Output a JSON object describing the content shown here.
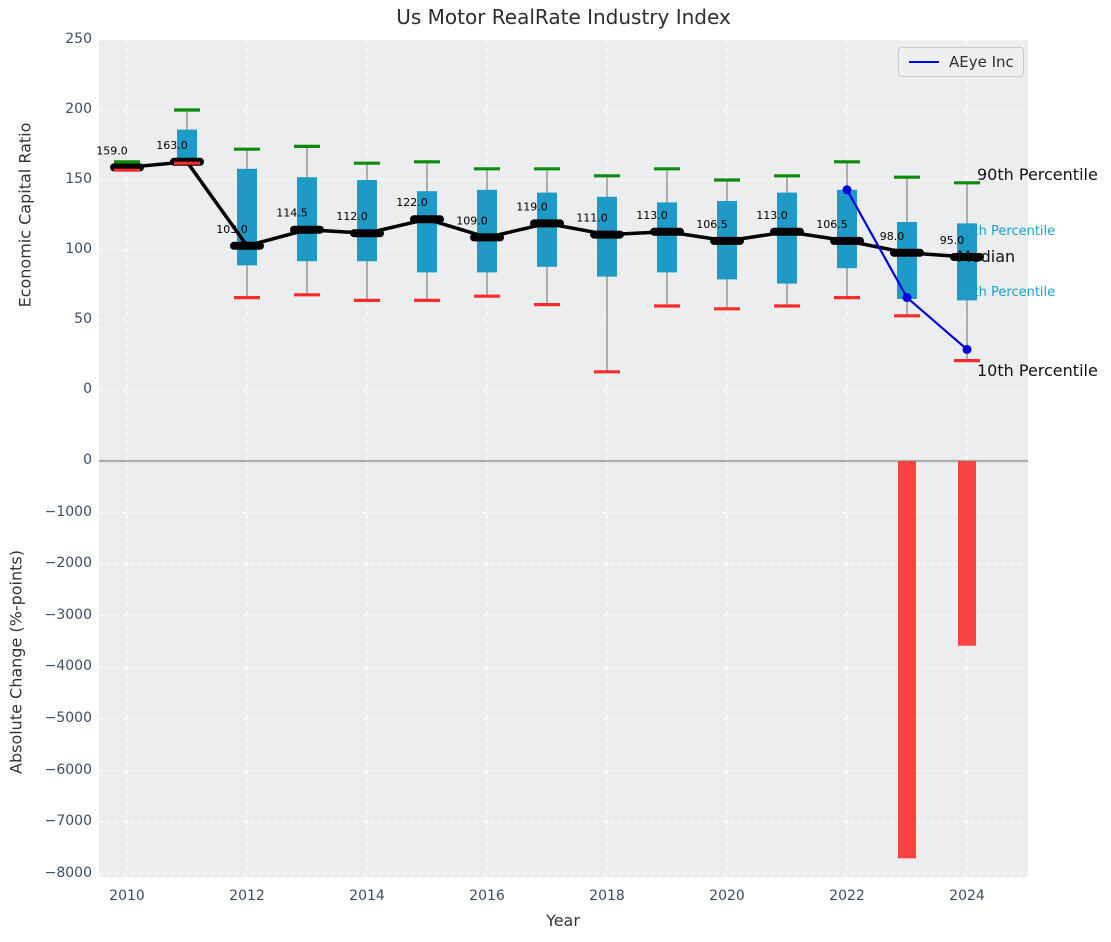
{
  "title": "Us Motor RealRate Industry Index",
  "legend": {
    "series_label": "AEye Inc"
  },
  "top_chart": {
    "ylabel": "Economic Capital Ratio",
    "ytick_values": [
      250,
      200,
      150,
      100,
      50,
      0
    ],
    "ytick_labels": [
      "250",
      "200",
      "150",
      "100",
      "50",
      "0"
    ]
  },
  "bottom_chart": {
    "ylabel": "Absolute Change (%-points)",
    "xlabel": "Year",
    "ytick_values": [
      0,
      -1000,
      -2000,
      -3000,
      -4000,
      -5000,
      -6000,
      -7000,
      -8000
    ],
    "ytick_labels": [
      "0",
      "−1000",
      "−2000",
      "−3000",
      "−4000",
      "−5000",
      "−6000",
      "−7000",
      "−8000"
    ],
    "xtick_values": [
      2010,
      2012,
      2014,
      2016,
      2018,
      2020,
      2022,
      2024
    ],
    "xtick_labels": [
      "2010",
      "2012",
      "2014",
      "2016",
      "2018",
      "2020",
      "2022",
      "2024"
    ]
  },
  "percentile_labels": {
    "p90": "90th Percentile",
    "p75": "75th Percentile",
    "median": "Median",
    "p25": "25th Percentile",
    "p10": "10th Percentile"
  },
  "colors": {
    "box": "#1f9ac6",
    "cap_top": "#0a8c0a",
    "cap_bottom": "#ff2a2a",
    "whisker": "#8a8a8a",
    "median_line": "#000000",
    "overlay_line": "#0000e6",
    "bar": "#f94343",
    "plot_bg": "#ebedee",
    "grid": "#ffffff",
    "tick_text": "#3d4e63",
    "cyan_text": "#1aa2cb",
    "zero_line": "#adadad"
  },
  "chart_data": [
    {
      "type": "boxplot",
      "title": "Us Motor RealRate Industry Index",
      "ylabel": "Economic Capital Ratio",
      "ylim": [
        -50,
        250
      ],
      "years": [
        2010,
        2011,
        2012,
        2013,
        2014,
        2015,
        2016,
        2017,
        2018,
        2019,
        2020,
        2021,
        2022,
        2023,
        2024
      ],
      "median": [
        159,
        163,
        103,
        114.5,
        112,
        122,
        109,
        119,
        111,
        113,
        106.5,
        113,
        106.5,
        98,
        95
      ],
      "median_labels": [
        "159.0",
        "163.0",
        "103.0",
        "114.5",
        "112.0",
        "122.0",
        "109.0",
        "119.0",
        "111.0",
        "113.0",
        "106.5",
        "113.0",
        "106.5",
        "98.0",
        "95.0"
      ],
      "p90": [
        163,
        200,
        172,
        174,
        162,
        163,
        158,
        158,
        153,
        158,
        150,
        153,
        163,
        152,
        148
      ],
      "p75": [
        161,
        186,
        158,
        152,
        150,
        142,
        143,
        141,
        138,
        134,
        135,
        141,
        143,
        120,
        119
      ],
      "p25": [
        158,
        163,
        89,
        92,
        92,
        84,
        84,
        88,
        81,
        84,
        79,
        76,
        87,
        65,
        64
      ],
      "p10": [
        157,
        162,
        66,
        68,
        64,
        64,
        67,
        61,
        13,
        60,
        58,
        60,
        66,
        53,
        21
      ],
      "overlay_series": [
        {
          "name": "AEye Inc",
          "x": [
            2022,
            2023,
            2024
          ],
          "y": [
            143,
            66,
            29
          ]
        }
      ]
    },
    {
      "type": "bar",
      "ylabel": "Absolute Change (%-points)",
      "xlabel": "Year",
      "ylim": [
        -8250,
        40
      ],
      "x": [
        2023,
        2024
      ],
      "values": [
        -7700,
        -3580
      ]
    }
  ]
}
